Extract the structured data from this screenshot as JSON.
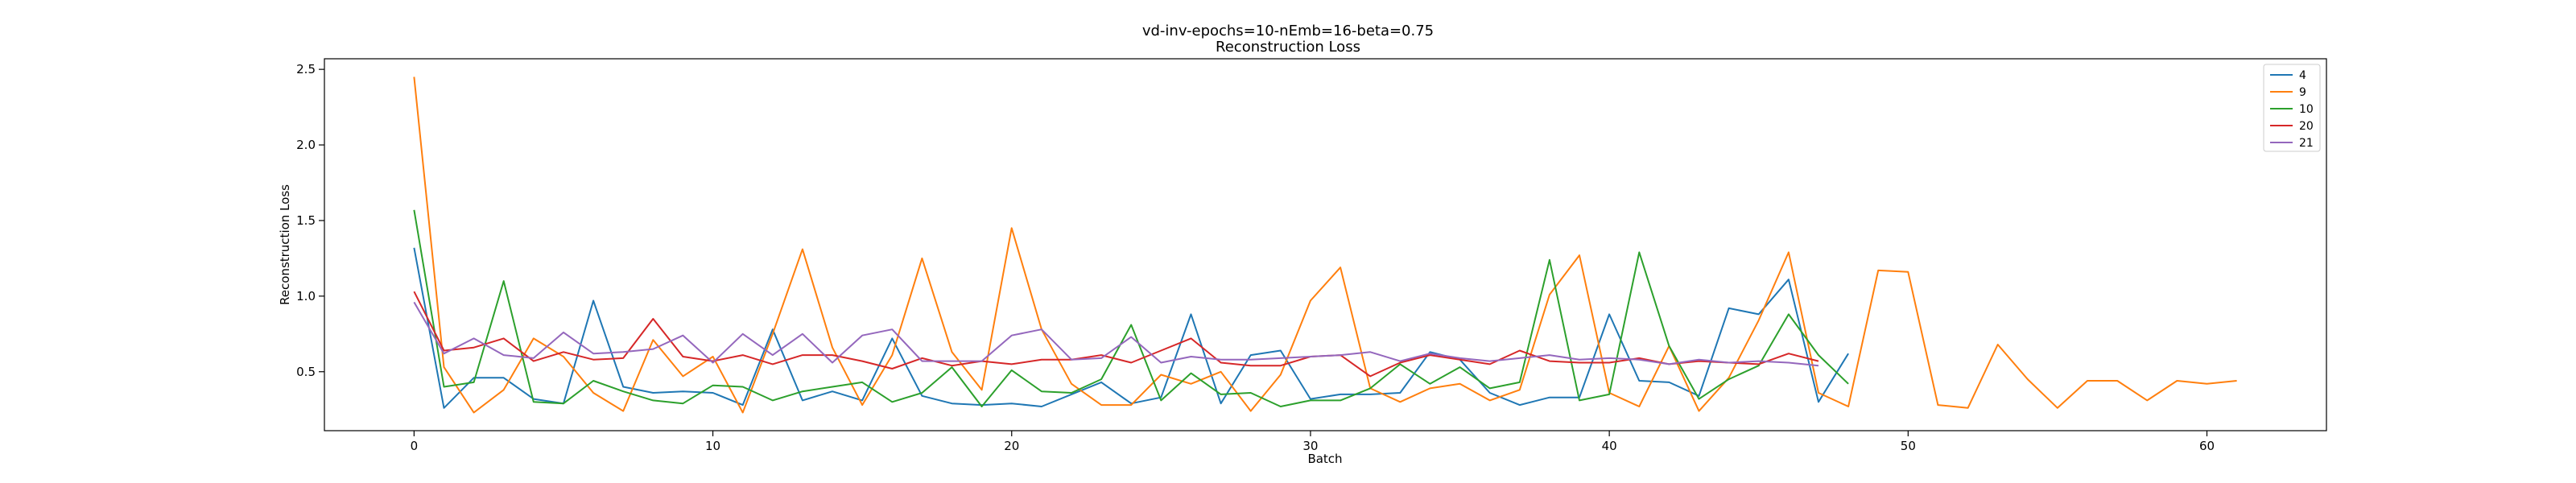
{
  "chart_data": {
    "type": "line",
    "title": "vd-inv-epochs=10-nEmb=16-beta=0.75",
    "subtitle": "Reconstruction Loss",
    "xlabel": "Batch",
    "ylabel": "Reconstruction Loss",
    "xlim": [
      -3,
      64
    ],
    "ylim": [
      0.11,
      2.57
    ],
    "xticks": [
      0,
      10,
      20,
      30,
      40,
      50,
      60
    ],
    "yticks": [
      0.5,
      1.0,
      1.5,
      2.0,
      2.5
    ],
    "ytick_labels": [
      "0.5",
      "1.0",
      "1.5",
      "2.0",
      "2.5"
    ],
    "grid": false,
    "legend_position": "top-right",
    "series": [
      {
        "name": "4",
        "color": "#1f77b4",
        "values": [
          1.32,
          0.26,
          0.46,
          0.46,
          0.32,
          0.29,
          0.97,
          0.4,
          0.36,
          0.37,
          0.36,
          0.28,
          0.78,
          0.31,
          0.37,
          0.31,
          0.72,
          0.34,
          0.29,
          0.28,
          0.29,
          0.27,
          0.35,
          0.43,
          0.29,
          0.33,
          0.88,
          0.29,
          0.61,
          0.64,
          0.32,
          0.35,
          0.35,
          0.36,
          0.63,
          0.58,
          0.36,
          0.28,
          0.33,
          0.33,
          0.88,
          0.44,
          0.43,
          0.34,
          0.92,
          0.88,
          1.11,
          0.3,
          0.62
        ]
      },
      {
        "name": "9",
        "color": "#ff7f0e",
        "values": [
          2.45,
          0.53,
          0.23,
          0.38,
          0.72,
          0.6,
          0.36,
          0.24,
          0.71,
          0.47,
          0.6,
          0.23,
          0.75,
          1.31,
          0.66,
          0.28,
          0.61,
          1.25,
          0.63,
          0.38,
          1.45,
          0.78,
          0.42,
          0.28,
          0.28,
          0.48,
          0.42,
          0.5,
          0.24,
          0.48,
          0.97,
          1.19,
          0.39,
          0.3,
          0.39,
          0.42,
          0.31,
          0.38,
          1.01,
          1.27,
          0.36,
          0.27,
          0.67,
          0.24,
          0.46,
          0.84,
          1.29,
          0.36,
          0.27,
          1.17,
          1.16,
          0.28,
          0.26,
          0.68,
          0.45,
          0.26,
          0.44,
          0.44,
          0.31,
          0.44,
          0.42,
          0.44
        ]
      },
      {
        "name": "10",
        "color": "#2ca02c",
        "values": [
          1.57,
          0.4,
          0.43,
          1.1,
          0.3,
          0.29,
          0.44,
          0.37,
          0.31,
          0.29,
          0.41,
          0.4,
          0.31,
          0.37,
          0.4,
          0.43,
          0.3,
          0.36,
          0.53,
          0.27,
          0.51,
          0.37,
          0.36,
          0.45,
          0.81,
          0.31,
          0.49,
          0.35,
          0.36,
          0.27,
          0.31,
          0.31,
          0.39,
          0.55,
          0.42,
          0.53,
          0.39,
          0.43,
          1.24,
          0.31,
          0.35,
          1.29,
          0.67,
          0.32,
          0.45,
          0.54,
          0.88,
          0.61,
          0.42
        ]
      },
      {
        "name": "20",
        "color": "#d62728",
        "values": [
          1.03,
          0.64,
          0.66,
          0.72,
          0.57,
          0.63,
          0.58,
          0.59,
          0.85,
          0.6,
          0.57,
          0.61,
          0.55,
          0.61,
          0.61,
          0.57,
          0.52,
          0.59,
          0.54,
          0.57,
          0.55,
          0.58,
          0.58,
          0.61,
          0.56,
          0.64,
          0.72,
          0.56,
          0.54,
          0.54,
          0.6,
          0.61,
          0.47,
          0.56,
          0.61,
          0.58,
          0.55,
          0.64,
          0.57,
          0.56,
          0.56,
          0.59,
          0.55,
          0.57,
          0.56,
          0.55,
          0.62,
          0.57
        ]
      },
      {
        "name": "21",
        "color": "#9467bd",
        "values": [
          0.96,
          0.62,
          0.72,
          0.61,
          0.59,
          0.76,
          0.62,
          0.63,
          0.65,
          0.74,
          0.56,
          0.75,
          0.61,
          0.75,
          0.56,
          0.74,
          0.78,
          0.57,
          0.57,
          0.57,
          0.74,
          0.78,
          0.58,
          0.59,
          0.73,
          0.56,
          0.6,
          0.58,
          0.58,
          0.59,
          0.6,
          0.61,
          0.63,
          0.57,
          0.62,
          0.59,
          0.57,
          0.59,
          0.61,
          0.58,
          0.59,
          0.58,
          0.55,
          0.58,
          0.56,
          0.57,
          0.56,
          0.54
        ]
      }
    ]
  }
}
